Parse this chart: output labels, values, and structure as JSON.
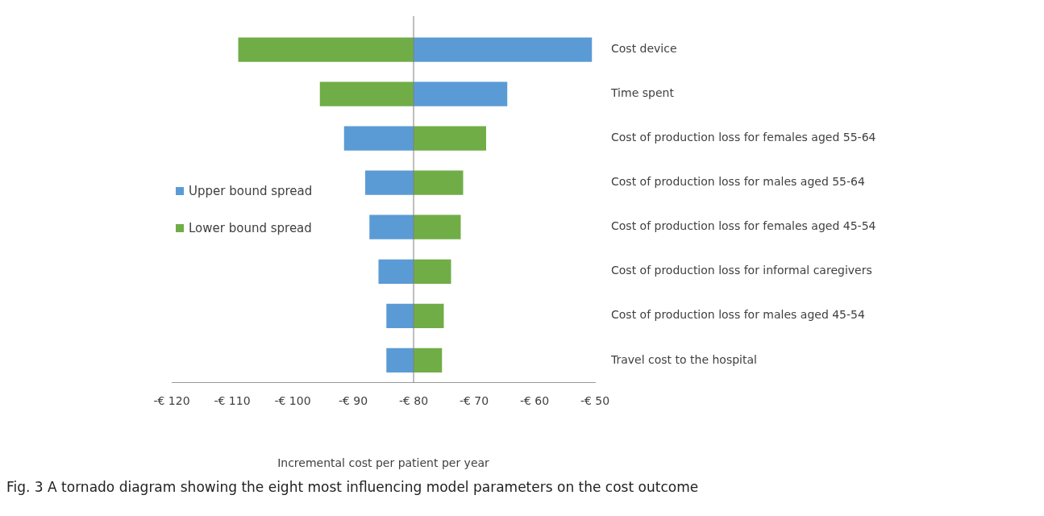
{
  "chart_data": {
    "type": "bar",
    "orientation": "horizontal",
    "categories": [
      "Cost device",
      "Time spent",
      "Cost of production loss for females aged 55-64",
      "Cost of production loss for males aged 55-64",
      "Cost of production loss for females aged 45-54",
      "Cost of production loss for informal caregivers",
      "Cost of production loss for males aged 45-54",
      "Travel cost to the hospital"
    ],
    "series": [
      {
        "name": "Upper bound spread",
        "color": "#5b9bd5",
        "base": [
          -80,
          -80,
          -80,
          -80,
          -80,
          -80,
          -80,
          -80
        ],
        "values": [
          29.5,
          15.5,
          -11.5,
          -8,
          -7.3,
          -5.8,
          -4.5,
          -4.5
        ]
      },
      {
        "name": "Lower bound spread",
        "color": "#70ad47",
        "base": [
          -80,
          -80,
          -80,
          -80,
          -80,
          -80,
          -80,
          -80
        ],
        "values": [
          -29,
          -15.5,
          12,
          8.2,
          7.8,
          6.2,
          5,
          4.7
        ]
      }
    ],
    "xlim": [
      -120,
      -50
    ],
    "xticks": [
      {
        "value": -120,
        "label": "-€ 120"
      },
      {
        "value": -110,
        "label": "-€ 110"
      },
      {
        "value": -100,
        "label": "-€ 100"
      },
      {
        "value": -90,
        "label": "-€ 90"
      },
      {
        "value": -80,
        "label": "-€ 80"
      },
      {
        "value": -70,
        "label": "-€ 70"
      },
      {
        "value": -60,
        "label": "-€ 60"
      },
      {
        "value": -50,
        "label": "-€ 50"
      }
    ],
    "xlabel": "Incremental cost per patient per year",
    "ref_lines": [
      {
        "axis": "x",
        "value": -80,
        "color": "#7f7f7f"
      }
    ],
    "legend": "left",
    "grid": false,
    "annotations": [
      "Fig. 3  A tornado diagram showing the eight most influencing model parameters on the cost outcome"
    ]
  }
}
